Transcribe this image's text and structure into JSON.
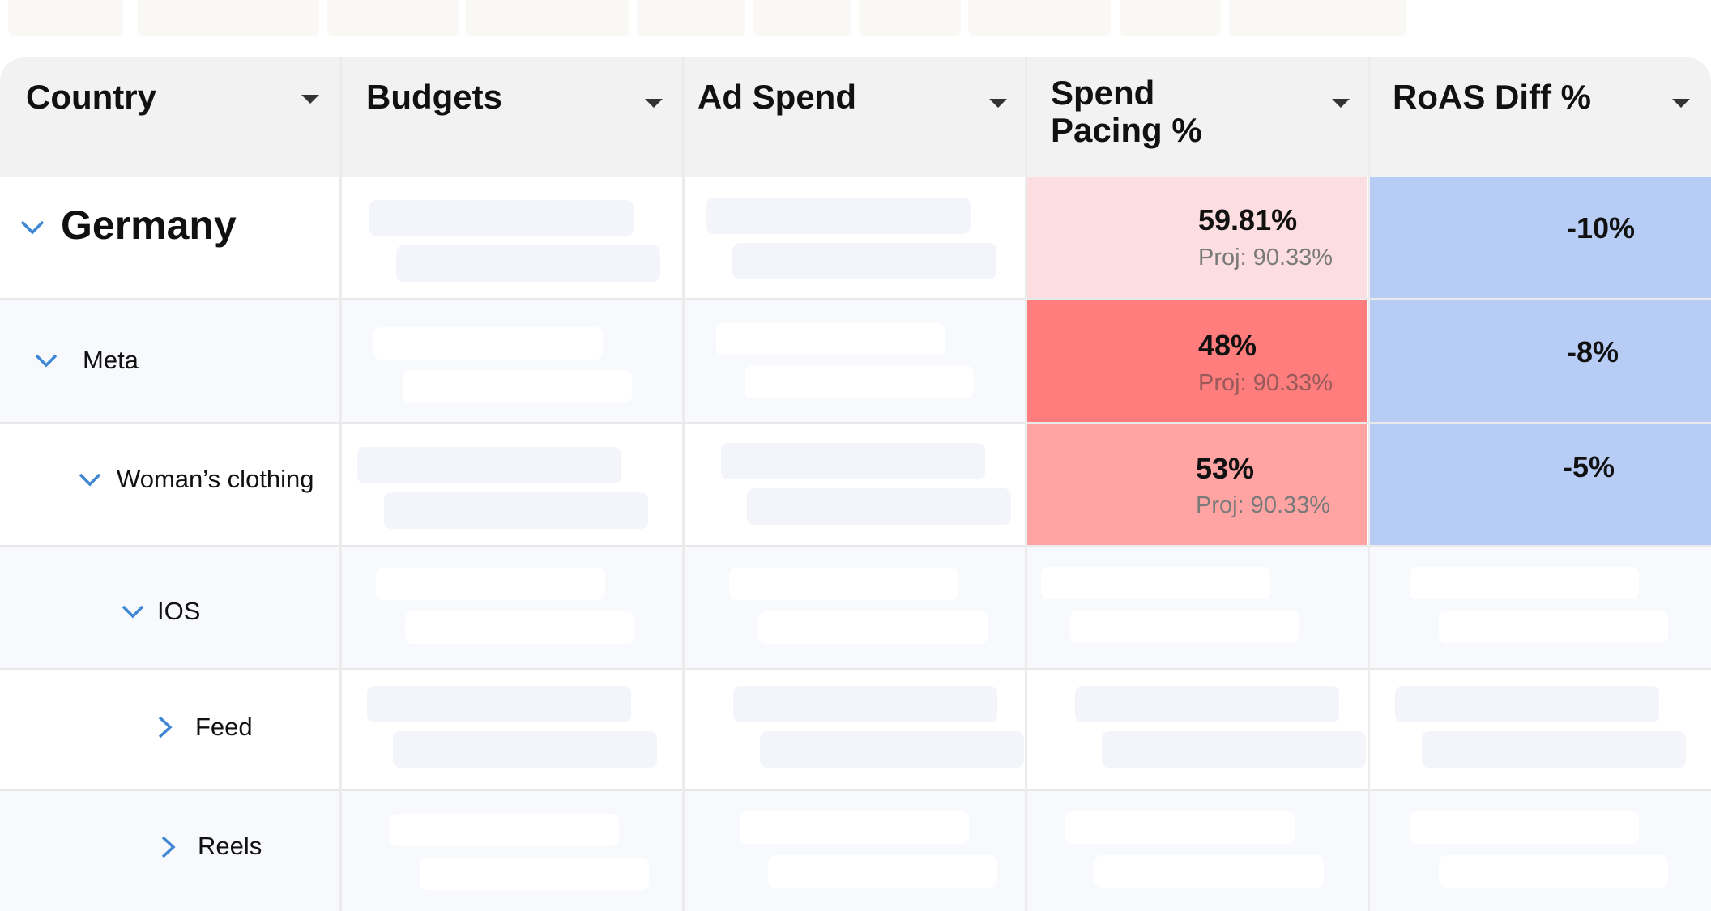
{
  "columns": [
    {
      "label": "Country"
    },
    {
      "label": "Budgets"
    },
    {
      "label": "Ad Spend"
    },
    {
      "label": "Spend\nPacing %"
    },
    {
      "label": "RoAS Diff %"
    }
  ],
  "rows": [
    {
      "label": "Germany",
      "expanded": true,
      "spend_pacing": "59.81%",
      "projection": "Proj: 90.33%",
      "roas_diff": "-10%"
    },
    {
      "label": "Meta",
      "expanded": true,
      "spend_pacing": "48%",
      "projection": "Proj: 90.33%",
      "roas_diff": "-8%"
    },
    {
      "label": "Woman’s clothing",
      "expanded": true,
      "spend_pacing": "53%",
      "projection": "Proj: 90.33%",
      "roas_diff": "-5%"
    },
    {
      "label": "IOS",
      "expanded": true
    },
    {
      "label": "Feed",
      "expanded": false
    },
    {
      "label": "Reels",
      "expanded": false
    }
  ],
  "icons": {
    "expand": "chevron-down-icon",
    "collapse": "chevron-right-icon",
    "sort": "caret-down-icon"
  },
  "colors": {
    "accent": "#3f86d4",
    "pacing_light": "#fddee0",
    "pacing_strong": "#ff7d7d",
    "pacing_medium": "#ffa3a3",
    "roas_blue": "#b7cdf5"
  }
}
